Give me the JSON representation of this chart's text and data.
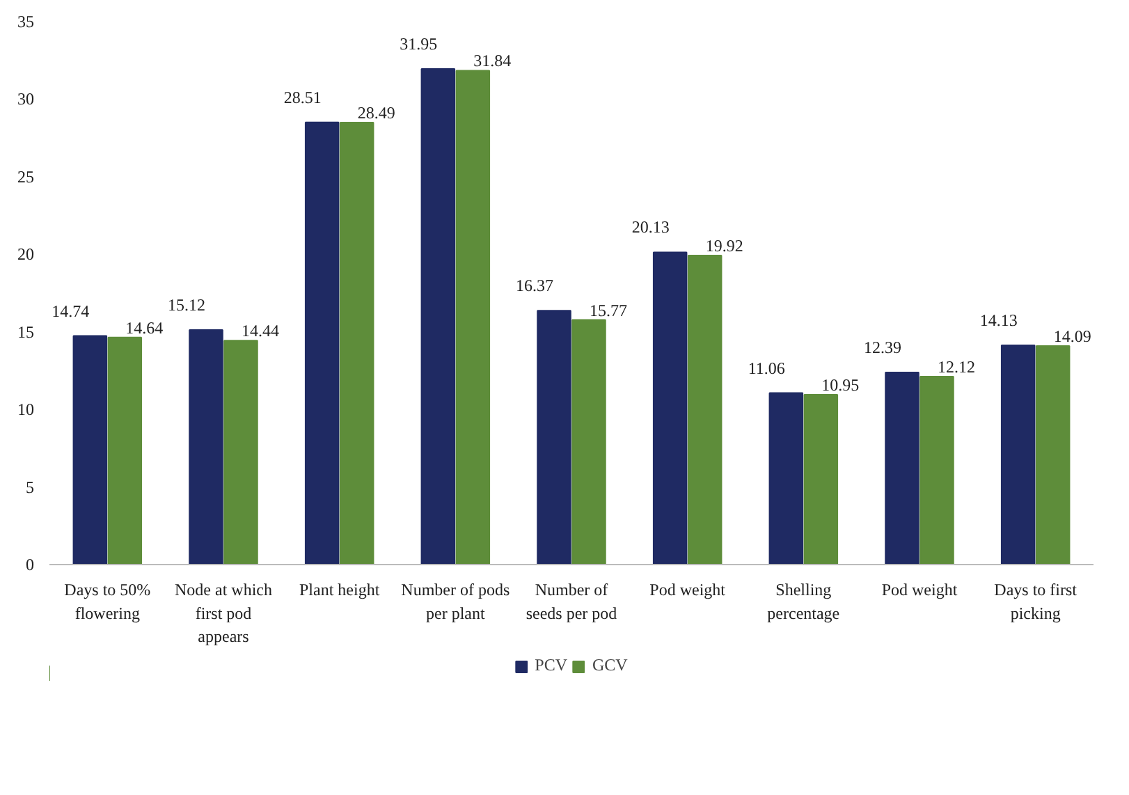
{
  "chart_data": {
    "type": "bar",
    "categories": [
      "Days to 50% flowering",
      "Node at which first pod appears",
      "Plant height",
      "Number of pods per plant",
      "Number of seeds per pod",
      "Pod weight",
      "Shelling percentage",
      "Pod weight",
      "Days to first picking"
    ],
    "series": [
      {
        "name": "PCV",
        "color": "#1f2a63",
        "values": [
          14.74,
          15.12,
          28.51,
          31.95,
          16.37,
          20.13,
          11.06,
          12.39,
          14.13
        ]
      },
      {
        "name": "GCV",
        "color": "#5e8d3a",
        "values": [
          14.64,
          14.44,
          28.49,
          31.84,
          15.77,
          19.92,
          10.95,
          12.12,
          14.09
        ]
      }
    ],
    "ylim": [
      0,
      35
    ],
    "yticks": [
      0,
      5,
      10,
      15,
      20,
      25,
      30,
      35
    ],
    "grid": false,
    "legend": "bottom",
    "data_labels": true
  }
}
